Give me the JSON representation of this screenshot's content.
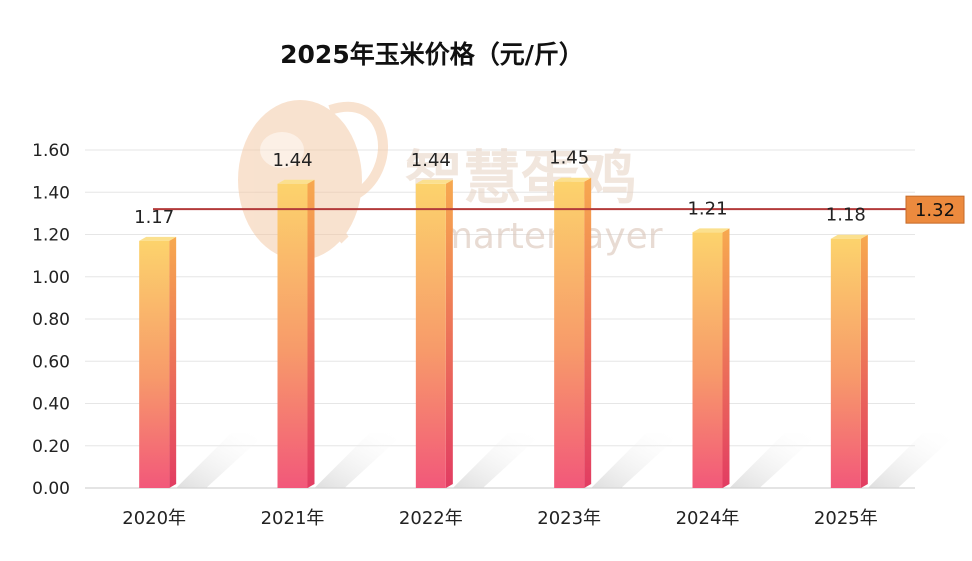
{
  "chart_data": {
    "type": "bar",
    "title": "2025年玉米价格（元/斤）",
    "categories": [
      "2020年",
      "2021年",
      "2022年",
      "2023年",
      "2024年",
      "2025年"
    ],
    "values": [
      1.17,
      1.44,
      1.44,
      1.45,
      1.21,
      1.18
    ],
    "ylim": [
      0,
      1.6
    ],
    "yticks": [
      "0.00",
      "0.20",
      "0.40",
      "0.60",
      "0.80",
      "1.00",
      "1.20",
      "1.40",
      "1.60"
    ],
    "grid": true,
    "reference_line": {
      "value": 1.32,
      "label": "1.32",
      "color": "#b33a3a",
      "label_bg": "#ec8a3e"
    },
    "bar_colors": {
      "top": "#fcd36c",
      "bottom": "#f2587a"
    },
    "watermark": {
      "cn": "智慧蛋鸡",
      "en": "Smarter layer"
    }
  }
}
